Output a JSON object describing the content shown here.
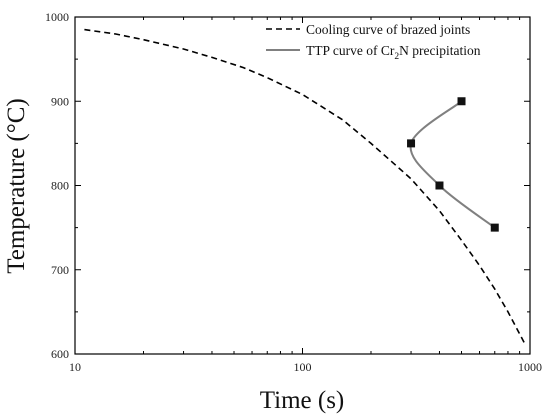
{
  "chart_data": {
    "type": "line",
    "title": "",
    "xlabel": "Time (s)",
    "ylabel": "Temperature (°C)",
    "x_scale": "log",
    "xlim": [
      10,
      1000
    ],
    "ylim": [
      600,
      1000
    ],
    "x_ticks": [
      10,
      100,
      1000
    ],
    "y_ticks": [
      600,
      700,
      800,
      900,
      1000
    ],
    "grid": false,
    "legend_position": "top-right",
    "series": [
      {
        "name": "Cooling curve of brazed joints",
        "style": "dashed",
        "color": "#000000",
        "markers": false,
        "x": [
          11,
          15,
          20,
          30,
          40,
          55,
          70,
          100,
          150,
          200,
          250,
          300,
          400,
          500,
          600,
          700,
          800,
          950
        ],
        "y": [
          985,
          980,
          973,
          962,
          952,
          940,
          928,
          908,
          878,
          850,
          827,
          808,
          770,
          735,
          705,
          677,
          650,
          612
        ]
      },
      {
        "name": "TTP curve of Cr2N precipitation",
        "name_parts": [
          "TTP curve of Cr",
          "2",
          "N precipitation"
        ],
        "style": "solid",
        "color": "#808080",
        "markers": true,
        "marker": "square",
        "marker_color": "#111111",
        "x": [
          500,
          300,
          400,
          700
        ],
        "y": [
          900,
          850,
          800,
          750
        ]
      }
    ]
  }
}
